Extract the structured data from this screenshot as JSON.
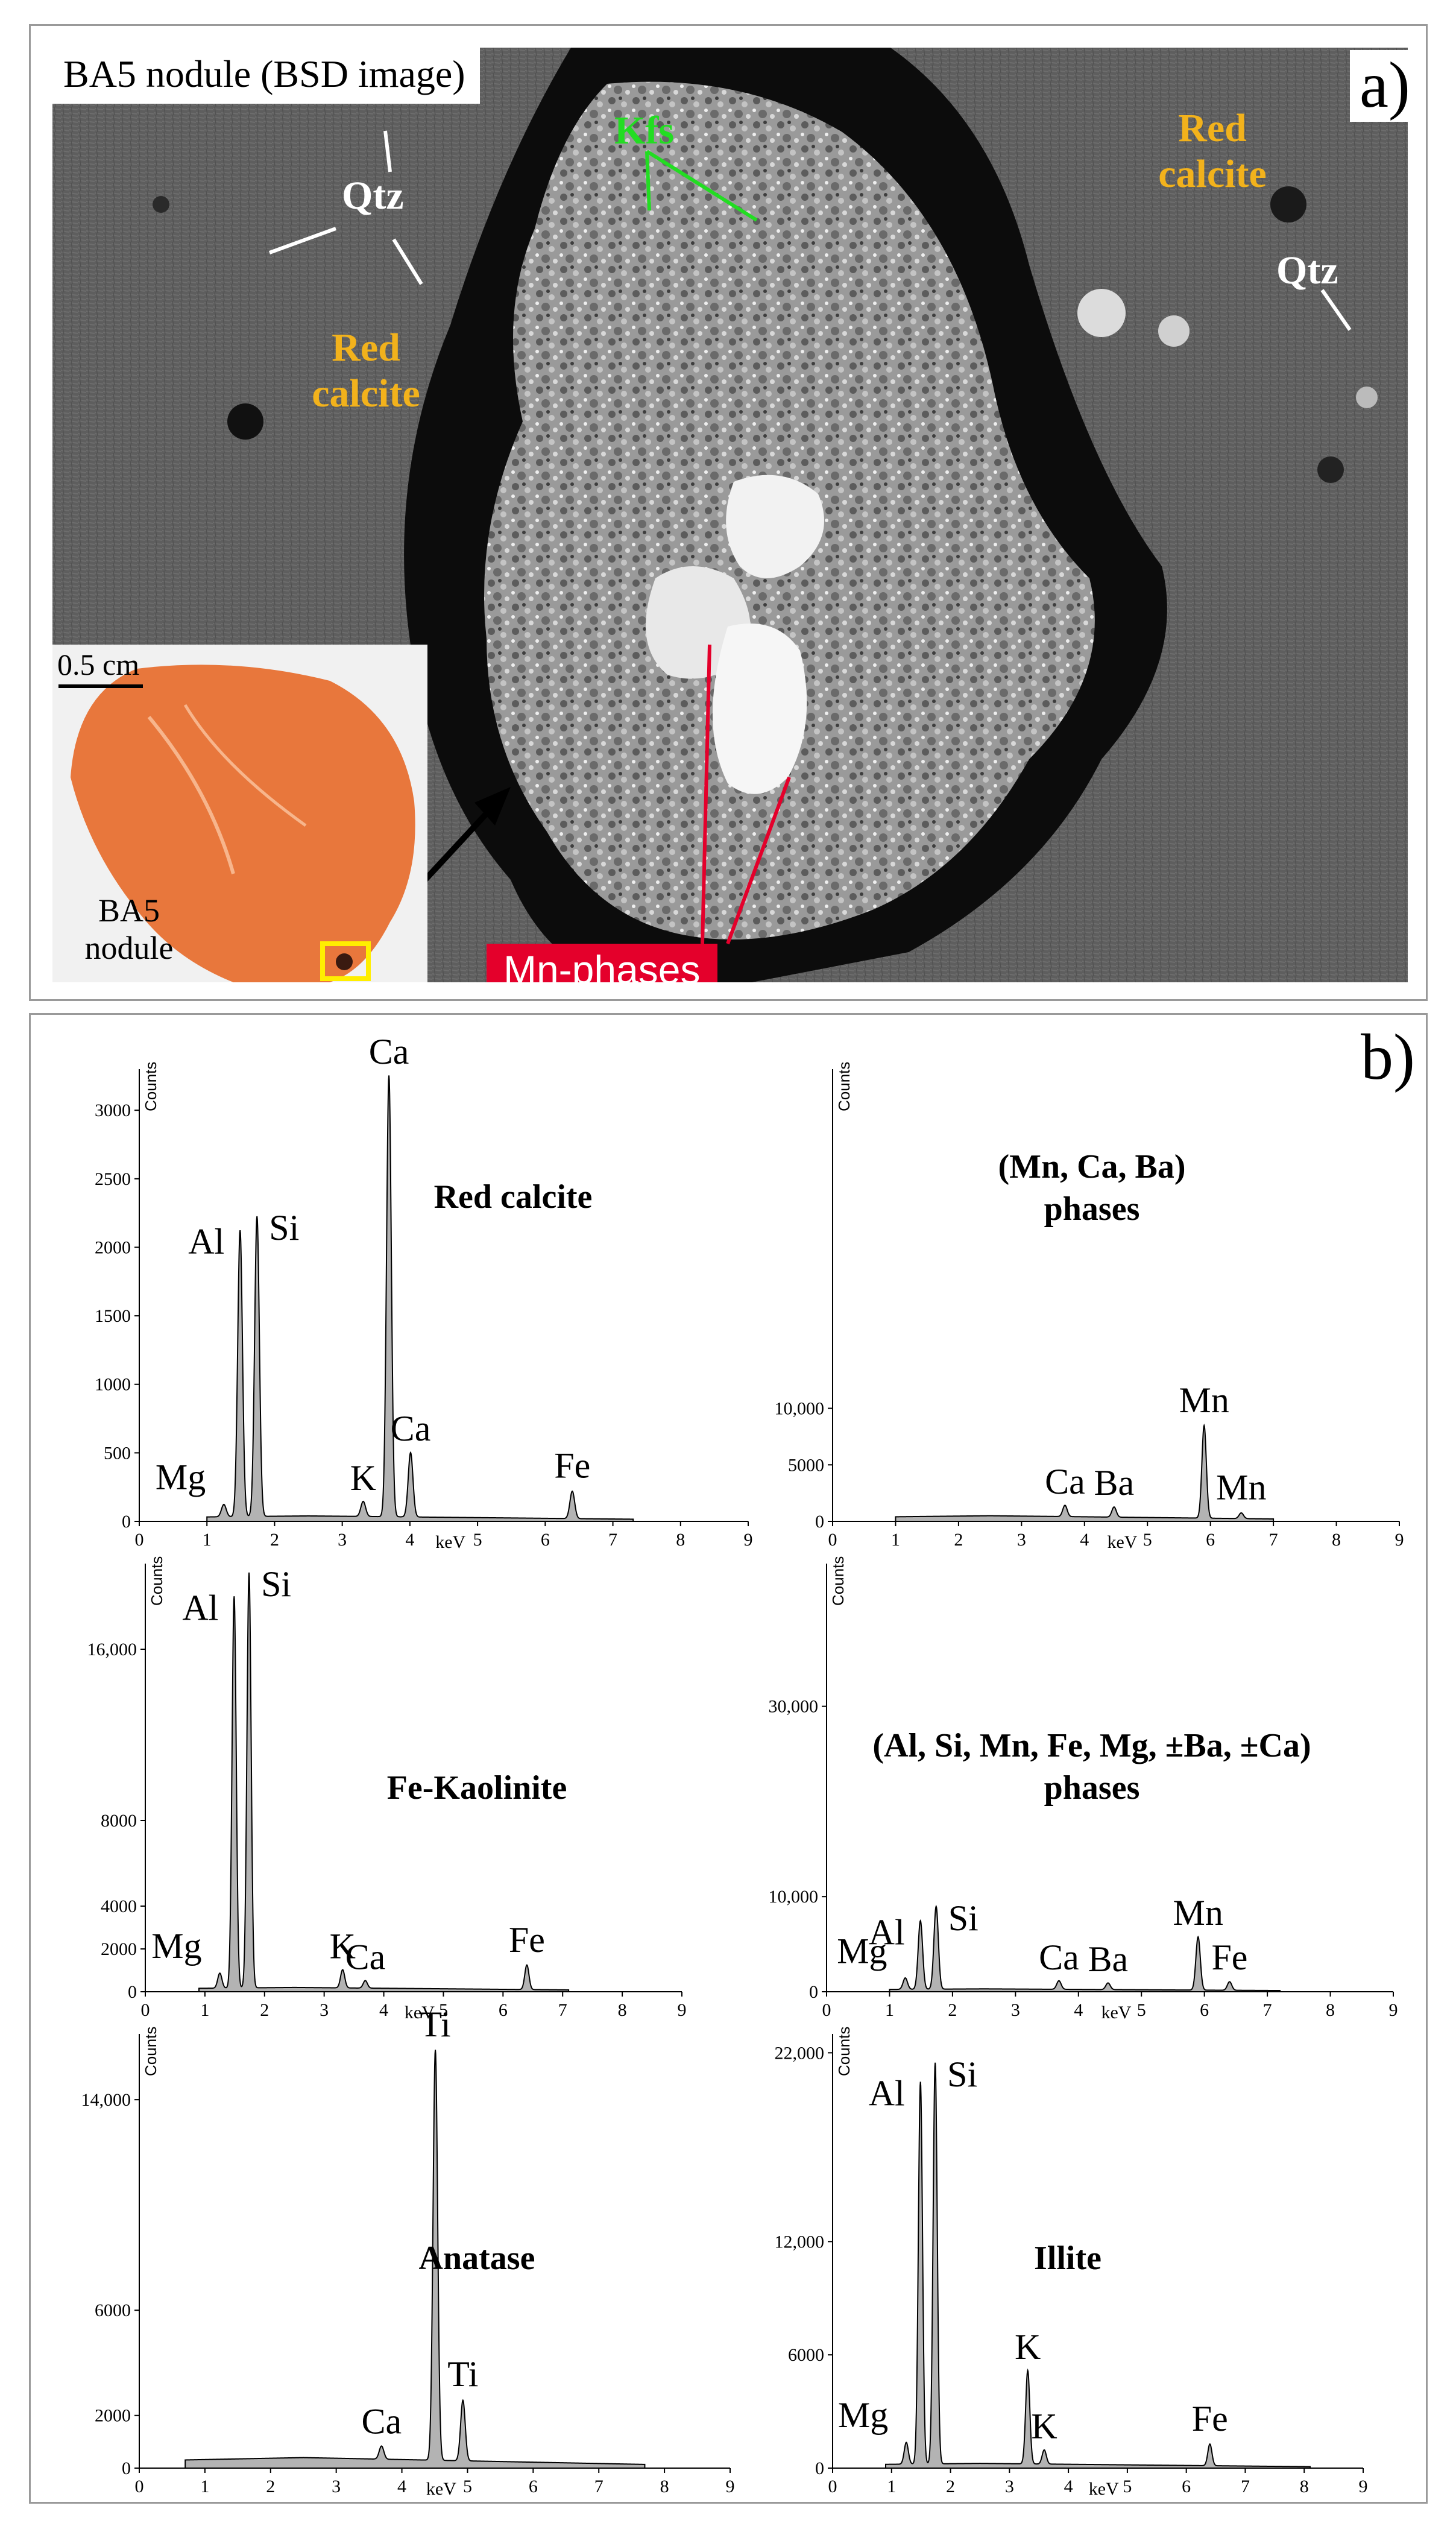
{
  "panel_a": {
    "letter": "a)",
    "title": "BA5 nodule (BSD image)",
    "labels": {
      "kfs": "Kfs",
      "qtz_left": "Qtz",
      "qtz_right": "Qtz",
      "red_calcite_left": "Red calcite",
      "red_calcite_right": "Red calcite",
      "mn_phases": "Mn-phases"
    },
    "inset": {
      "scale_bar": "0.5 cm",
      "label": "BA5 nodule"
    },
    "colors": {
      "kfs": "#22dd22",
      "qtz": "#ffffff",
      "red_calcite": "#f2b21c",
      "mn_box": "#e4002b",
      "inset_box": "#ffee00",
      "nodule": "#e8773c"
    }
  },
  "panel_b": {
    "letter": "b)"
  },
  "chart_data": [
    {
      "type": "area",
      "name": "Red calcite",
      "xlabel": "keV",
      "ylabel": "Counts",
      "xlim": [
        0,
        9
      ],
      "ylim": [
        0,
        3300
      ],
      "xticks": [
        0,
        1,
        2,
        3,
        4,
        5,
        6,
        7,
        8,
        9
      ],
      "yticks": [
        0,
        500,
        1000,
        1500,
        2000,
        2500,
        3000
      ],
      "ytick_labels": [
        "0",
        "500",
        "1000",
        "1500",
        "2000",
        "2500",
        "3000"
      ],
      "peaks": [
        {
          "label": "Mg",
          "x": 1.25,
          "y": 130
        },
        {
          "label": "Al",
          "x": 1.49,
          "y": 2130
        },
        {
          "label": "Si",
          "x": 1.74,
          "y": 2230
        },
        {
          "label": "K",
          "x": 3.31,
          "y": 150
        },
        {
          "label": "Ca",
          "x": 3.69,
          "y": 3260
        },
        {
          "label": "Ca",
          "x": 4.01,
          "y": 510
        },
        {
          "label": "Fe",
          "x": 6.4,
          "y": 240
        }
      ],
      "x_range": [
        1.0,
        7.3
      ],
      "baseline": 40
    },
    {
      "type": "area",
      "name": "(Mn, Ca, Ba) phases",
      "xlabel": "keV",
      "ylabel": "Counts",
      "xlim": [
        0,
        9
      ],
      "ylim": [
        0,
        40000
      ],
      "xticks": [
        0,
        1,
        2,
        3,
        4,
        5,
        6,
        7,
        8,
        9
      ],
      "yticks": [
        0,
        5000,
        10000
      ],
      "ytick_labels": [
        "0",
        "5000",
        "10,000"
      ],
      "peaks": [
        {
          "label": "Ca",
          "x": 3.69,
          "y": 1500
        },
        {
          "label": "Ba",
          "x": 4.47,
          "y": 1400
        },
        {
          "label": "Mn",
          "x": 5.9,
          "y": 8700
        },
        {
          "label": "Mn",
          "x": 6.49,
          "y": 1000
        }
      ],
      "x_range": [
        1.0,
        7.0
      ],
      "baseline": 500
    },
    {
      "type": "area",
      "name": "Fe-Kaolinite",
      "xlabel": "keV",
      "ylabel": "Counts",
      "xlim": [
        0,
        9
      ],
      "ylim": [
        0,
        20000
      ],
      "xticks": [
        0,
        1,
        2,
        3,
        4,
        5,
        6,
        7,
        8,
        9
      ],
      "yticks": [
        0,
        2000,
        4000,
        8000,
        16000
      ],
      "ytick_labels": [
        "0",
        "2000",
        "4000",
        "8000",
        "16,000"
      ],
      "peaks": [
        {
          "label": "Mg",
          "x": 1.25,
          "y": 900
        },
        {
          "label": "Al",
          "x": 1.49,
          "y": 18500
        },
        {
          "label": "Si",
          "x": 1.74,
          "y": 19600
        },
        {
          "label": "K",
          "x": 3.31,
          "y": 1050
        },
        {
          "label": "Ca",
          "x": 3.69,
          "y": 550
        },
        {
          "label": "Fe",
          "x": 6.4,
          "y": 1350
        }
      ],
      "x_range": [
        0.9,
        7.1
      ],
      "baseline": 200
    },
    {
      "type": "area",
      "name": "(Al, Si, Mn, Fe, Mg, ±Ba, ±Ca) phases",
      "xlabel": "keV",
      "ylabel": "Counts",
      "xlim": [
        0,
        9
      ],
      "ylim": [
        0,
        45000
      ],
      "xticks": [
        0,
        1,
        2,
        3,
        4,
        5,
        6,
        7,
        8,
        9
      ],
      "yticks": [
        0,
        10000,
        30000
      ],
      "ytick_labels": [
        "0",
        "10,000",
        "30,000"
      ],
      "peaks": [
        {
          "label": "Mg",
          "x": 1.25,
          "y": 1500
        },
        {
          "label": "Al",
          "x": 1.49,
          "y": 7500
        },
        {
          "label": "Si",
          "x": 1.74,
          "y": 9000
        },
        {
          "label": "Ca",
          "x": 3.69,
          "y": 1200
        },
        {
          "label": "Ba",
          "x": 4.47,
          "y": 1000
        },
        {
          "label": "Mn",
          "x": 5.9,
          "y": 5900
        },
        {
          "label": "Fe",
          "x": 6.4,
          "y": 1200
        }
      ],
      "x_range": [
        1.0,
        7.2
      ],
      "baseline": 300
    },
    {
      "type": "area",
      "name": "Anatase",
      "xlabel": "keV",
      "ylabel": "Counts",
      "xlim": [
        0,
        9
      ],
      "ylim": [
        0,
        16500
      ],
      "xticks": [
        0,
        1,
        2,
        3,
        4,
        5,
        6,
        7,
        8,
        9
      ],
      "yticks": [
        0,
        2000,
        6000,
        14000
      ],
      "ytick_labels": [
        "0",
        "2000",
        "6000",
        "14,000"
      ],
      "peaks": [
        {
          "label": "Ca",
          "x": 3.69,
          "y": 900
        },
        {
          "label": "Ti",
          "x": 4.51,
          "y": 16000
        },
        {
          "label": "Ti",
          "x": 4.93,
          "y": 2700
        }
      ],
      "x_range": [
        0.7,
        7.7
      ],
      "baseline": 400
    },
    {
      "type": "area",
      "name": "Illite",
      "xlabel": "keV",
      "ylabel": "Counts",
      "xlim": [
        0,
        9
      ],
      "ylim": [
        0,
        23000
      ],
      "xticks": [
        0,
        1,
        2,
        3,
        4,
        5,
        6,
        7,
        8,
        9
      ],
      "yticks": [
        0,
        6000,
        12000,
        22000
      ],
      "ytick_labels": [
        "0",
        "6000",
        "12,000",
        "22,000"
      ],
      "peaks": [
        {
          "label": "Mg",
          "x": 1.25,
          "y": 1400
        },
        {
          "label": "Al",
          "x": 1.49,
          "y": 20500
        },
        {
          "label": "Si",
          "x": 1.74,
          "y": 21500
        },
        {
          "label": "K",
          "x": 3.31,
          "y": 5200
        },
        {
          "label": "K",
          "x": 3.59,
          "y": 1000
        },
        {
          "label": "Fe",
          "x": 6.4,
          "y": 1400
        }
      ],
      "x_range": [
        0.9,
        8.1
      ],
      "baseline": 250
    }
  ]
}
